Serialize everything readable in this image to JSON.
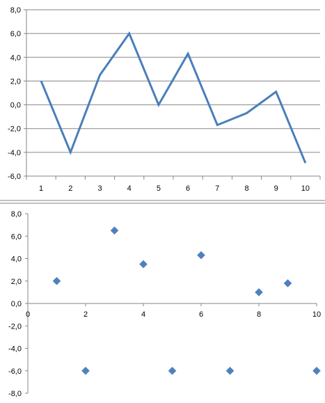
{
  "chart_data": [
    {
      "type": "line",
      "categories": [
        "1",
        "2",
        "3",
        "4",
        "5",
        "6",
        "7",
        "8",
        "9",
        "10"
      ],
      "series": [
        {
          "values": [
            2.0,
            -4.0,
            2.5,
            6.0,
            0.0,
            4.3,
            -1.7,
            -0.7,
            1.1,
            -4.9
          ]
        }
      ],
      "ylim": [
        -6.0,
        8.0
      ],
      "ymajor": 2.0,
      "y_ticks": [
        "8,0",
        "6,0",
        "4,0",
        "2,0",
        "0,0",
        "-2,0",
        "-4,0",
        "-6,0"
      ],
      "negative_tick_color": "#c00000",
      "grid": "horizontal",
      "line_color": "#4a7ebb",
      "title": "",
      "xlabel": "",
      "ylabel": ""
    },
    {
      "type": "scatter",
      "marker": "diamond",
      "points": [
        {
          "x": 1,
          "y": 2.0
        },
        {
          "x": 2,
          "y": -6.0
        },
        {
          "x": 3,
          "y": 6.5
        },
        {
          "x": 4,
          "y": 3.5
        },
        {
          "x": 5,
          "y": -6.0
        },
        {
          "x": 6,
          "y": 4.3
        },
        {
          "x": 7,
          "y": -6.0
        },
        {
          "x": 8,
          "y": 1.0
        },
        {
          "x": 9,
          "y": 1.8
        },
        {
          "x": 10,
          "y": -6.0
        }
      ],
      "xlim": [
        0,
        10
      ],
      "ylim": [
        -8.0,
        8.0
      ],
      "ymajor": 2.0,
      "x_ticks": [
        "0",
        "2",
        "4",
        "6",
        "8",
        "10"
      ],
      "y_ticks": [
        "8,0",
        "6,0",
        "4,0",
        "2,0",
        "0,0",
        "-2,0",
        "-4,0",
        "-6,0",
        "-8,0"
      ],
      "negative_tick_color": "#c00000",
      "grid": "none",
      "marker_color": "#4f81bd",
      "title": "",
      "xlabel": "",
      "ylabel": ""
    }
  ],
  "divider_color": "#808080"
}
